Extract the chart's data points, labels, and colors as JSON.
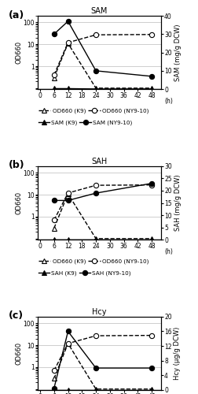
{
  "time": [
    6,
    12,
    24,
    48
  ],
  "panel_a": {
    "title": "SAM",
    "ylabel_right": "SAM (mg/g DCW)",
    "ylim_right": [
      0,
      40
    ],
    "yticks_right": [
      0,
      10,
      20,
      30,
      40
    ],
    "od660_K9": [
      0.3,
      11,
      0.1,
      0.1
    ],
    "od660_NY910": [
      0.4,
      12,
      27,
      28
    ],
    "met_K9": [
      0.3,
      0.3,
      0.1,
      0.1
    ],
    "met_NY910": [
      30,
      37,
      10,
      7
    ]
  },
  "panel_b": {
    "title": "SAH",
    "ylabel_right": "SAH (mg/g DCW)",
    "ylim_right": [
      0,
      30
    ],
    "yticks_right": [
      0,
      5,
      10,
      15,
      20,
      25,
      30
    ],
    "od660_K9": [
      0.3,
      11,
      0.1,
      0.1
    ],
    "od660_NY910": [
      0.7,
      12,
      27,
      28
    ],
    "met_K9": [
      0.1,
      0.1,
      0.1,
      0.1
    ],
    "met_NY910": [
      16,
      16,
      19,
      23
    ]
  },
  "panel_c": {
    "title": "Hcy",
    "ylabel_right": "Hcy (μg/g DCW)",
    "ylim_right": [
      0,
      20
    ],
    "yticks_right": [
      0,
      4,
      8,
      12,
      16,
      20
    ],
    "od660_K9": [
      0.3,
      12,
      0.1,
      0.1
    ],
    "od660_NY910": [
      0.7,
      12,
      27,
      28
    ],
    "met_K9": [
      0.1,
      0.1,
      0.1,
      0.1
    ],
    "met_NY910": [
      0.5,
      16,
      6,
      6
    ]
  },
  "xticks": [
    0,
    6,
    12,
    18,
    24,
    30,
    36,
    42,
    48
  ],
  "xlim": [
    -1,
    52
  ],
  "ylim_log": [
    0.09,
    200
  ],
  "yticks_log": [
    0.1,
    1,
    10,
    100
  ],
  "yticklabels_log": [
    "",
    "1",
    "10",
    "100"
  ],
  "marker_size": 4.5,
  "line_width": 1.0,
  "title_fontsize": 7,
  "label_fontsize": 6,
  "tick_fontsize": 5.5,
  "legend_fontsize": 5.2
}
